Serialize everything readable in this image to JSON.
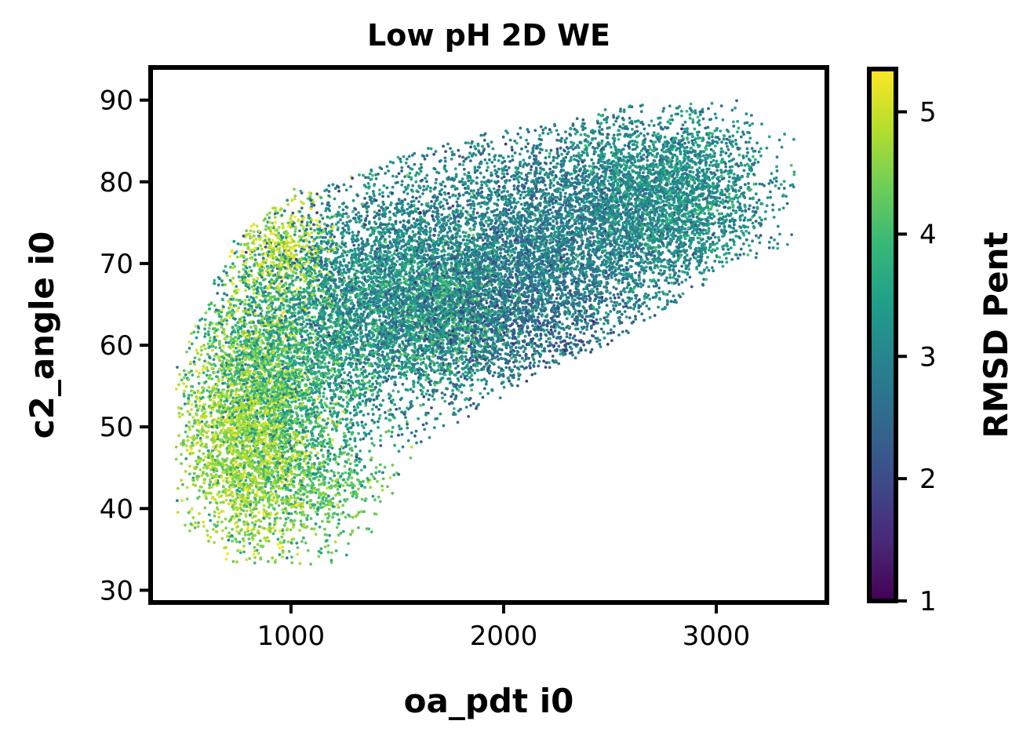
{
  "chart_data": {
    "type": "scatter",
    "title": "Low pH 2D WE",
    "xlabel": "oa_pdt i0",
    "ylabel": "c2_angle i0",
    "xlim": [
      340,
      3520
    ],
    "ylim": [
      28.5,
      94
    ],
    "x_ticks": [
      1000,
      2000,
      3000
    ],
    "y_ticks": [
      30,
      40,
      50,
      60,
      70,
      80,
      90
    ],
    "colorbar": {
      "label": "RMSD Pent",
      "colormap": "viridis",
      "range": [
        1,
        5.35
      ],
      "ticks": [
        1,
        2,
        3,
        4,
        5
      ]
    },
    "grid": false,
    "legend": "none",
    "clusters": [
      {
        "x": 800,
        "y": 49,
        "sx": 150,
        "sy": 7.5,
        "n": 2600,
        "c": 4.7,
        "cs": 0.35
      },
      {
        "x": 1000,
        "y": 57,
        "sx": 220,
        "sy": 8.0,
        "n": 2800,
        "c": 3.7,
        "cs": 0.45
      },
      {
        "x": 950,
        "y": 72,
        "sx": 120,
        "sy": 3.5,
        "n": 500,
        "c": 4.9,
        "cs": 0.3
      },
      {
        "x": 1400,
        "y": 66,
        "sx": 250,
        "sy": 7.0,
        "n": 2600,
        "c": 3.1,
        "cs": 0.45
      },
      {
        "x": 1800,
        "y": 68,
        "sx": 300,
        "sy": 8.0,
        "n": 3200,
        "c": 3.0,
        "cs": 0.5
      },
      {
        "x": 1700,
        "y": 64,
        "sx": 150,
        "sy": 4.0,
        "n": 700,
        "c": 3.9,
        "cs": 0.3
      },
      {
        "x": 2000,
        "y": 63,
        "sx": 250,
        "sy": 4.0,
        "n": 900,
        "c": 2.3,
        "cs": 0.35
      },
      {
        "x": 2300,
        "y": 73,
        "sx": 300,
        "sy": 6.5,
        "n": 3000,
        "c": 2.8,
        "cs": 0.4
      },
      {
        "x": 2750,
        "y": 78,
        "sx": 250,
        "sy": 5.5,
        "n": 3200,
        "c": 3.2,
        "cs": 0.4
      },
      {
        "x": 1150,
        "y": 42,
        "sx": 180,
        "sy": 3.0,
        "n": 400,
        "c": 4.3,
        "cs": 0.3
      }
    ],
    "value_range_x": [
      460,
      3380
    ],
    "value_range_y": [
      31.5,
      91
    ],
    "band_edges": {
      "xs": [
        460,
        700,
        1000,
        1300,
        1600,
        1900,
        2200,
        2500,
        2800,
        3100,
        3380
      ],
      "lower": [
        38,
        33,
        33,
        33,
        48,
        52,
        57,
        60,
        65,
        70,
        72
      ],
      "upper": [
        57,
        72,
        79,
        81,
        84,
        86,
        87,
        89,
        90,
        90,
        86
      ]
    }
  }
}
